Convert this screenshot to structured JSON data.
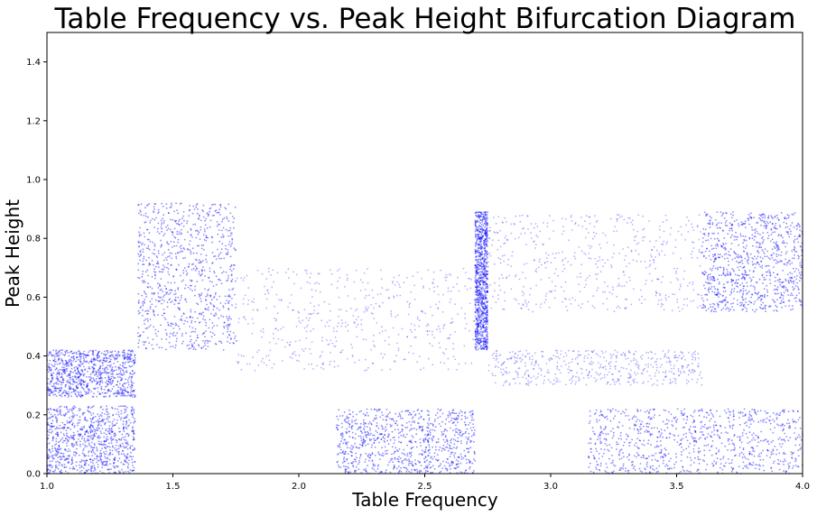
{
  "chart_data": {
    "type": "scatter",
    "title": "Table Frequency vs. Peak Height Bifurcation Diagram",
    "xlabel": "Table Frequency",
    "ylabel": "Peak Height",
    "xlim": [
      1.0,
      4.0
    ],
    "ylim": [
      0.0,
      1.5
    ],
    "x_ticks": [
      "1.0",
      "1.5",
      "2.0",
      "2.5",
      "3.0",
      "3.5",
      "4.0"
    ],
    "x_tick_values": [
      1.0,
      1.5,
      2.0,
      2.5,
      3.0,
      3.5,
      4.0
    ],
    "y_ticks": [
      "0.0",
      "0.2",
      "0.4",
      "0.6",
      "0.8",
      "1.0",
      "1.2",
      "1.4"
    ],
    "y_tick_values": [
      0.0,
      0.2,
      0.4,
      0.6,
      0.8,
      1.0,
      1.2,
      1.4
    ],
    "grid": false,
    "legend": "none",
    "marker_color": "#0000ff",
    "series": [
      {
        "regions": [
          {
            "x": [
              1.0,
              1.35
            ],
            "y": [
              0.0,
              0.23
            ],
            "density": "high"
          },
          {
            "x": [
              1.0,
              1.35
            ],
            "y": [
              0.26,
              0.42
            ],
            "density": "high"
          },
          {
            "x": [
              1.36,
              1.75
            ],
            "y": [
              0.42,
              0.92
            ],
            "density": "high"
          },
          {
            "x": [
              1.75,
              2.7
            ],
            "y": [
              0.35,
              0.7
            ],
            "density": "medium"
          },
          {
            "x": [
              2.15,
              2.7
            ],
            "y": [
              0.0,
              0.22
            ],
            "density": "high"
          },
          {
            "x": [
              2.7,
              2.75
            ],
            "y": [
              0.42,
              0.89
            ],
            "density": "high"
          },
          {
            "x": [
              2.75,
              3.6
            ],
            "y": [
              0.55,
              0.88
            ],
            "density": "medium"
          },
          {
            "x": [
              2.75,
              3.6
            ],
            "y": [
              0.3,
              0.42
            ],
            "density": "medium"
          },
          {
            "x": [
              3.15,
              4.0
            ],
            "y": [
              0.0,
              0.22
            ],
            "density": "high"
          },
          {
            "x": [
              3.6,
              4.0
            ],
            "y": [
              0.55,
              0.89
            ],
            "density": "high"
          }
        ]
      }
    ]
  }
}
